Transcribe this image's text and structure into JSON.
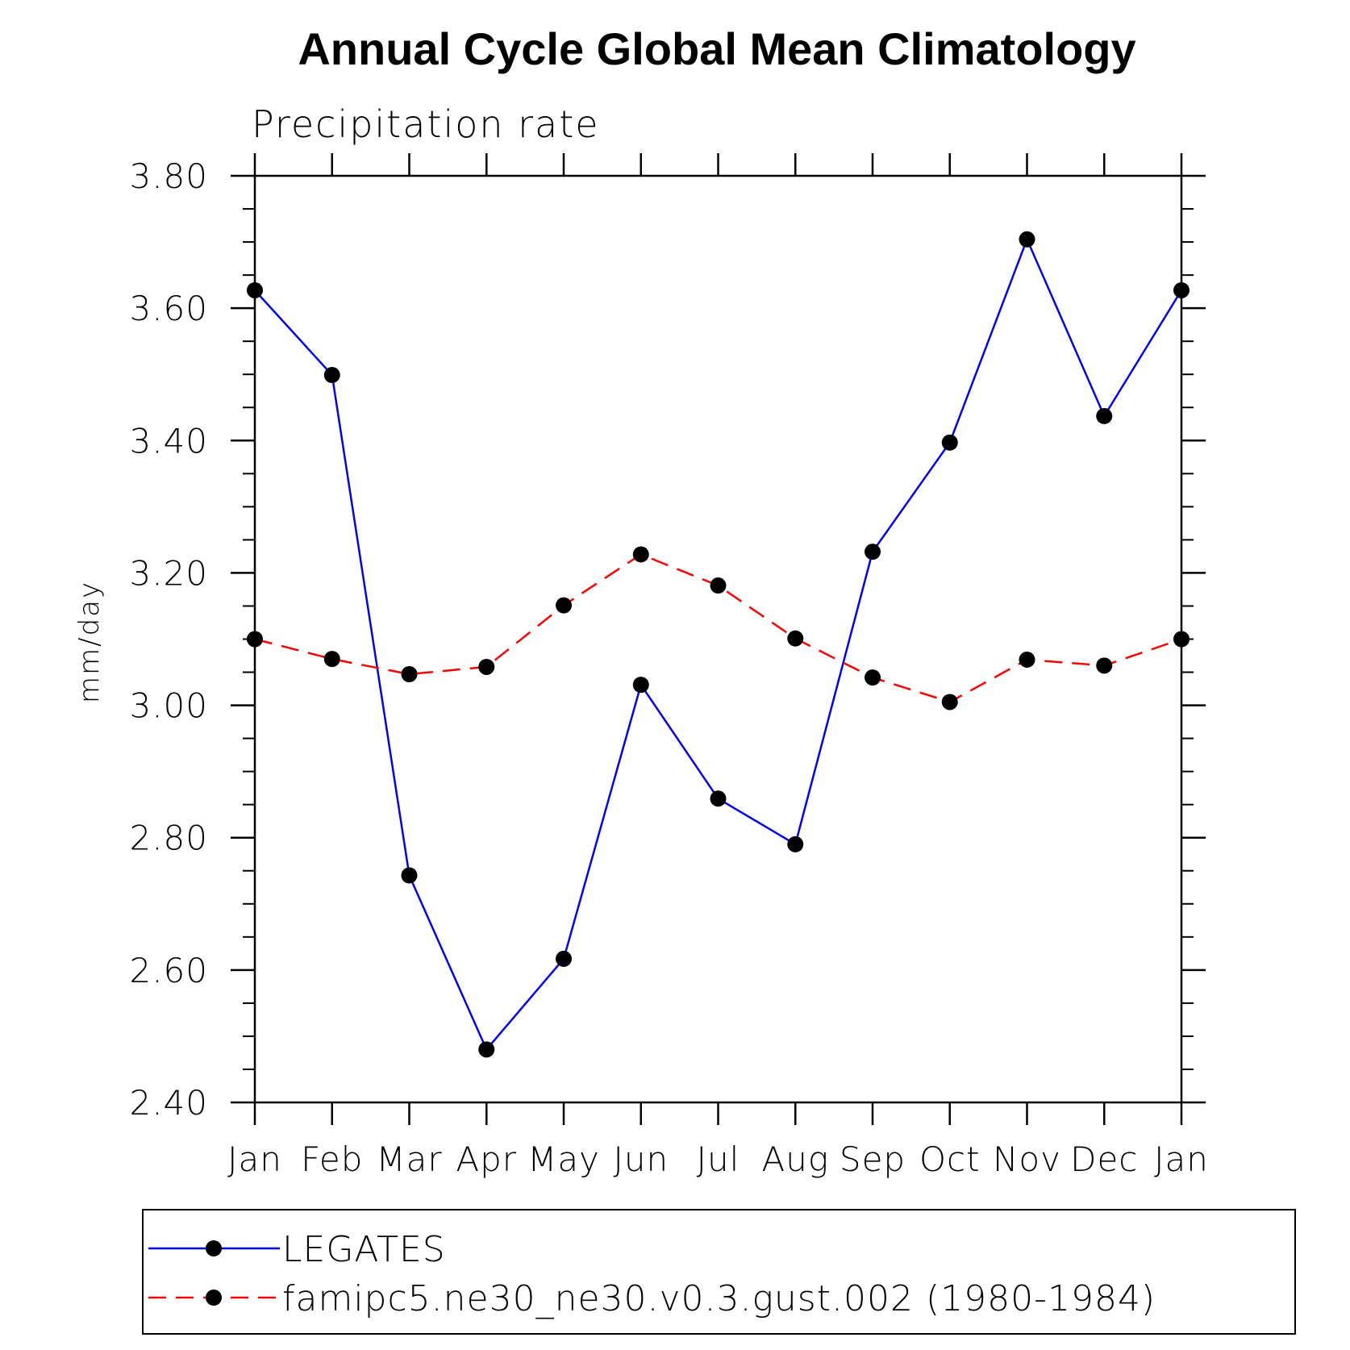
{
  "chart_data": {
    "type": "line",
    "title": "Annual Cycle Global Mean Climatology",
    "subtitle": "Precipitation rate",
    "xlabel": "",
    "ylabel": "mm/day",
    "categories": [
      "Jan",
      "Feb",
      "Mar",
      "Apr",
      "May",
      "Jun",
      "Jul",
      "Aug",
      "Sep",
      "Oct",
      "Nov",
      "Dec",
      "Jan"
    ],
    "ylim": [
      2.4,
      3.8
    ],
    "yticks": [
      "2.40",
      "2.60",
      "2.80",
      "3.00",
      "3.20",
      "3.40",
      "3.60",
      "3.80"
    ],
    "ytick_values": [
      2.4,
      2.6,
      2.8,
      3.0,
      3.2,
      3.4,
      3.6,
      3.8
    ],
    "legend_position": "bottom",
    "series": [
      {
        "name": "LEGATES",
        "color": "#0000ff",
        "dash": "solid",
        "values": [
          3.627,
          3.499,
          2.743,
          2.48,
          2.617,
          3.031,
          2.859,
          2.79,
          3.232,
          3.397,
          3.704,
          3.437,
          3.627
        ]
      },
      {
        "name": "famipc5.ne30_ne30.v0.3.gust.002 (1980-1984)",
        "color": "#ff0000",
        "dash": "dashed",
        "values": [
          3.1,
          3.07,
          3.047,
          3.058,
          3.151,
          3.228,
          3.181,
          3.101,
          3.042,
          3.005,
          3.069,
          3.06,
          3.1
        ]
      }
    ],
    "marker_color": "#000000"
  }
}
